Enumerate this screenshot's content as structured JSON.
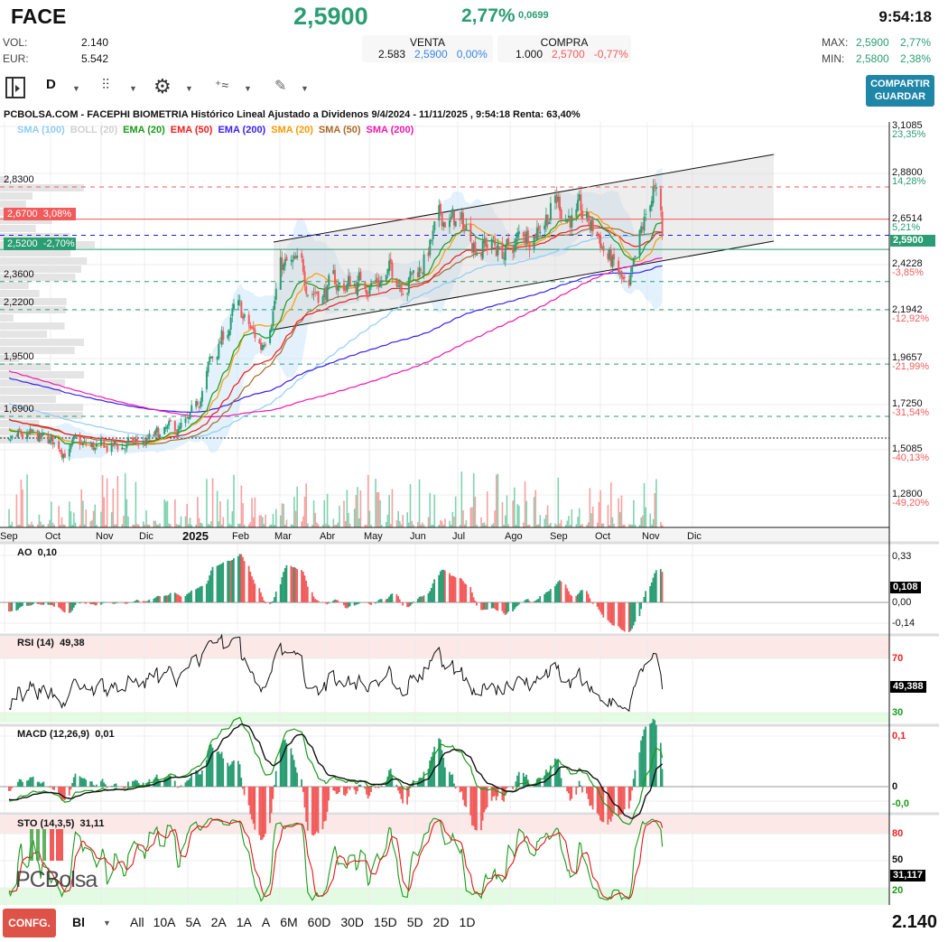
{
  "header": {
    "symbol": "FACE",
    "price": "2,5900",
    "change_pct": "2,77%",
    "change_abs": "0,0699",
    "time": "9:54:18",
    "vol_label": "VOL:",
    "vol": "2.140",
    "eur_label": "EUR:",
    "eur": "5.542",
    "venta": {
      "label": "VENTA",
      "qty": "2.583",
      "price": "2,5900",
      "pct": "0,00%"
    },
    "compra": {
      "label": "COMPRA",
      "qty": "1.000",
      "price": "2,5700",
      "pct": "-0,77%"
    },
    "max_label": "MAX:",
    "max": "2,5900",
    "max_pct": "2,77%",
    "min_label": "MIN:",
    "min": "2,5800",
    "min_pct": "2,38%"
  },
  "toolbar": {
    "period": "D",
    "share_label": "COMPARTIR",
    "save_label": "GUARDAR"
  },
  "chart": {
    "title": "PCBOLSA.COM - FACEPHI BIOMETRIA Histórico Lineal Ajustado a Dividenos 9/4/2024 - 11/11/2025 , 9:54:18 Renta: 63,40%",
    "legend": [
      {
        "label": "SMA (100)",
        "color": "#8fcdf5"
      },
      {
        "label": "BOLL (20)",
        "color": "#d0d0d0"
      },
      {
        "label": "EMA (20)",
        "color": "#1a9a1a"
      },
      {
        "label": "EMA (50)",
        "color": "#f01c1c"
      },
      {
        "label": "EMA (200)",
        "color": "#3a1ff0"
      },
      {
        "label": "SMA (20)",
        "color": "#ff9a00"
      },
      {
        "label": "SMA (50)",
        "color": "#a86a2a"
      },
      {
        "label": "SMA (200)",
        "color": "#f018b0"
      }
    ],
    "right_axis": [
      {
        "value": "3,1085",
        "pct": "23,35%",
        "positive": true
      },
      {
        "value": "2,8800",
        "pct": "14,28%",
        "positive": true
      },
      {
        "value": "2,6514",
        "pct": "5,21%",
        "positive": true
      },
      {
        "value": "2,4228",
        "pct": "-3,85%",
        "positive": false
      },
      {
        "value": "2,1942",
        "pct": "-12,92%",
        "positive": false
      },
      {
        "value": "1,9657",
        "pct": "-21,99%",
        "positive": false
      },
      {
        "value": "1,7250",
        "pct": "-31,54%",
        "positive": false
      },
      {
        "value": "1,5085",
        "pct": "-40,13%",
        "positive": false
      },
      {
        "value": "1,2800",
        "pct": "-49,20%",
        "positive": false
      }
    ],
    "current_price_tag": "2,5900",
    "levels": [
      {
        "value": "2,8300",
        "color": "#f25b5b",
        "style": "dashed"
      },
      {
        "value": "2,6700",
        "pct": "3,08%",
        "color": "#f25b5b",
        "style": "solid"
      },
      {
        "value": "2,5900",
        "color": "#1a1ae0",
        "style": "dashed"
      },
      {
        "value": "2,5200",
        "pct": "-2,70%",
        "color": "#2a9d74",
        "style": "solid"
      },
      {
        "value": "2,3600",
        "color": "#2a9d74",
        "style": "dashed"
      },
      {
        "value": "2,2200",
        "color": "#2a9d74",
        "style": "dashed"
      },
      {
        "value": "1,9500",
        "color": "#2a9d74",
        "style": "dashed"
      },
      {
        "value": "1,6900",
        "color": "#2a9d74",
        "style": "dashed"
      }
    ],
    "months": [
      "Sep",
      "Oct",
      "Nov",
      "Dic",
      "2025",
      "Feb",
      "Mar",
      "Abr",
      "May",
      "Jun",
      "Jul",
      "Ago",
      "Sep",
      "Oct",
      "Nov",
      "Dic"
    ],
    "ao": {
      "label": "AO",
      "value": "0,10",
      "axis": [
        "0,33",
        "0,00",
        "-0,14"
      ],
      "tag": "0,108"
    },
    "rsi": {
      "label": "RSI (14)",
      "value": "49,38",
      "axis": [
        "70",
        "30"
      ],
      "tag": "49,388"
    },
    "macd": {
      "label": "MACD (12,26,9)",
      "value": "0,01",
      "axis": [
        "0,1",
        "0",
        "-0,0"
      ]
    },
    "sto": {
      "label": "STO (14,3,5)",
      "value": "31,11",
      "axis": [
        "80",
        "50",
        "20"
      ],
      "tag": "31,117"
    },
    "logo": "PCBolsa"
  },
  "chart_data": {
    "type": "candlestick",
    "title": "PCBOLSA.COM - FACEPHI BIOMETRIA Histórico Lineal Ajustado a Dividenos 9/4/2024 - 11/11/2025",
    "ylim": [
      1.28,
      3.1085
    ],
    "close_keypoints": [
      [
        "2024-09-04",
        1.59
      ],
      [
        "2024-10-01",
        1.55
      ],
      [
        "2024-11-01",
        1.52
      ],
      [
        "2024-12-01",
        1.55
      ],
      [
        "2025-01-02",
        1.63
      ],
      [
        "2025-01-15",
        1.94
      ],
      [
        "2025-02-01",
        2.21
      ],
      [
        "2025-02-18",
        2.03
      ],
      [
        "2025-03-03",
        2.44
      ],
      [
        "2025-04-01",
        2.32
      ],
      [
        "2025-05-01",
        2.37
      ],
      [
        "2025-06-01",
        2.41
      ],
      [
        "2025-06-20",
        2.68
      ],
      [
        "2025-07-01",
        2.62
      ],
      [
        "2025-08-01",
        2.5
      ],
      [
        "2025-09-01",
        2.77
      ],
      [
        "2025-10-01",
        2.57
      ],
      [
        "2025-10-20",
        2.26
      ],
      [
        "2025-11-05",
        2.82
      ],
      [
        "2025-11-11",
        2.59
      ]
    ],
    "grid": true
  },
  "footer": {
    "config_label": "CONFG.",
    "chart_type": "Bl",
    "ranges": [
      "All",
      "10A",
      "5A",
      "2A",
      "1A",
      "A",
      "6M",
      "60D",
      "30D",
      "15D",
      "5D",
      "2D",
      "1D"
    ],
    "volume": "2.140"
  }
}
